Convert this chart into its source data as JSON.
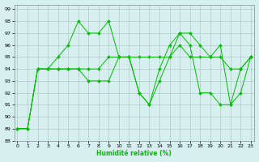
{
  "xlabel": "Humidité relative (%)",
  "bg_color": "#d6f0f0",
  "grid_color": "#b0c8c8",
  "line_color": "#00bb00",
  "xlim": [
    0,
    23
  ],
  "ylim": [
    88,
    99.4
  ],
  "yticks": [
    88,
    89,
    90,
    91,
    92,
    93,
    94,
    95,
    96,
    97,
    98,
    99
  ],
  "xticks": [
    0,
    1,
    2,
    3,
    4,
    5,
    6,
    7,
    8,
    9,
    10,
    11,
    12,
    13,
    14,
    15,
    16,
    17,
    18,
    19,
    20,
    21,
    22,
    23
  ],
  "series": [
    [
      89,
      89,
      94,
      94,
      95,
      96,
      98,
      97,
      97,
      98,
      95,
      95,
      92,
      91,
      94,
      96,
      97,
      97,
      96,
      95,
      96,
      91,
      92,
      95
    ],
    [
      89,
      89,
      94,
      94,
      94,
      94,
      94,
      94,
      94,
      95,
      95,
      95,
      95,
      95,
      95,
      95,
      96,
      95,
      95,
      95,
      95,
      94,
      94,
      95
    ],
    [
      89,
      89,
      94,
      94,
      94,
      94,
      94,
      93,
      93,
      93,
      95,
      95,
      92,
      91,
      93,
      95,
      97,
      96,
      92,
      92,
      91,
      91,
      94,
      95
    ]
  ]
}
